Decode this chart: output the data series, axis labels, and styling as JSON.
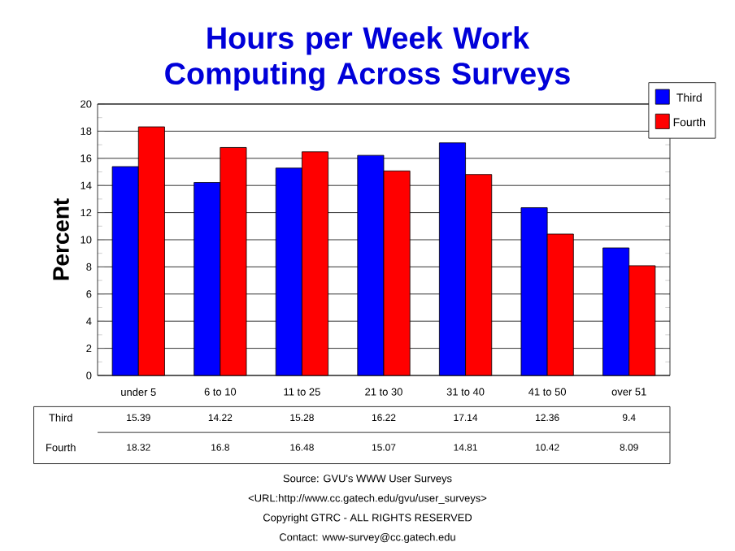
{
  "chart_data": {
    "type": "bar",
    "title": "Hours per Week Work Computing Across Surveys",
    "ylabel": "Percent",
    "categories": [
      "under 5",
      "6 to 10",
      "11 to 25",
      "21 to 30",
      "31 to 40",
      "41 to 50",
      "over 51"
    ],
    "series": [
      {
        "name": "Third",
        "color": "#0000ff",
        "values": [
          15.39,
          14.22,
          15.28,
          16.22,
          17.14,
          12.36,
          9.4
        ]
      },
      {
        "name": "Fourth",
        "color": "#ff0000",
        "values": [
          18.32,
          16.8,
          16.48,
          15.07,
          14.81,
          10.42,
          8.09
        ]
      }
    ],
    "ylim": [
      0,
      20
    ],
    "yticks": [
      0,
      2,
      4,
      6,
      8,
      10,
      12,
      14,
      16,
      18,
      20
    ],
    "grid": "y",
    "legend": "top right",
    "data_labels": true,
    "annotations": [
      "Source: GVU's WWW User Surveys",
      "<URL:http://www.cc.gatech.edu/gvu/user_surveys>",
      "Copyright GTRC -  ALL RIGHTS RESERVED",
      "Contact: www-survey@cc.gatech.edu"
    ]
  }
}
